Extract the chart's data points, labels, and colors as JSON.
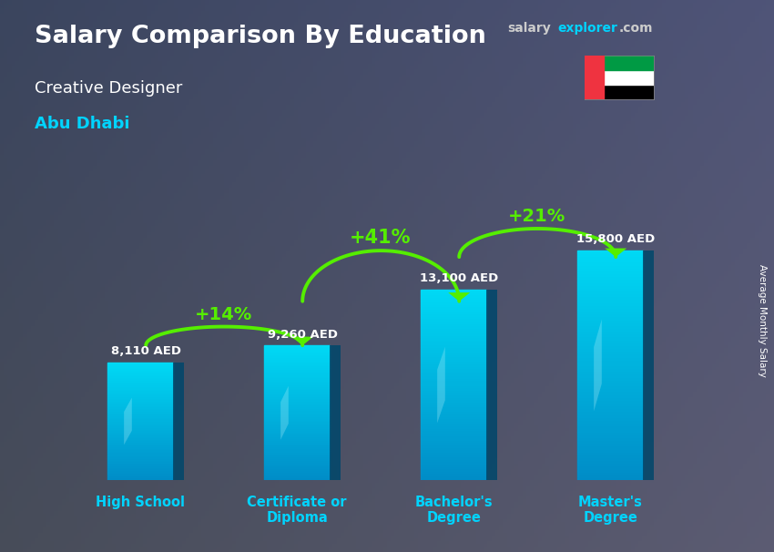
{
  "title_main": "Salary Comparison By Education",
  "subtitle1": "Creative Designer",
  "subtitle2": "Abu Dhabi",
  "ylabel": "Average Monthly Salary",
  "categories": [
    "High School",
    "Certificate or\nDiploma",
    "Bachelor's\nDegree",
    "Master's\nDegree"
  ],
  "values": [
    8110,
    9260,
    13100,
    15800
  ],
  "value_labels": [
    "8,110 AED",
    "9,260 AED",
    "13,100 AED",
    "15,800 AED"
  ],
  "pct_labels": [
    "+14%",
    "+41%",
    "+21%"
  ],
  "arrow_color": "#55ee00",
  "title_color": "#ffffff",
  "subtitle1_color": "#ffffff",
  "subtitle2_color": "#00d4ff",
  "value_label_color": "#ffffff",
  "pct_color": "#55ee00",
  "xlabel_color": "#00d4ff",
  "ylabel_color": "#ffffff",
  "bar_front_color": "#00b8d9",
  "bar_side_color": "#006080",
  "bar_top_color": "#00e5ff",
  "bg_color": "#3a4555",
  "figsize": [
    8.5,
    6.06
  ],
  "dpi": 100
}
